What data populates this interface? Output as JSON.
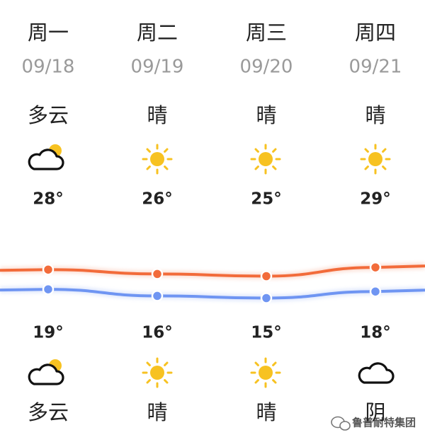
{
  "forecast": {
    "days": [
      {
        "weekday": "周一",
        "date": "09/18",
        "day_weather": "多云",
        "night_weather": "多云"
      },
      {
        "weekday": "周二",
        "date": "09/19",
        "day_weather": "晴",
        "night_weather": "晴"
      },
      {
        "weekday": "周三",
        "date": "09/20",
        "day_weather": "晴",
        "night_weather": "晴"
      },
      {
        "weekday": "周四",
        "date": "09/21",
        "day_weather": "晴",
        "night_weather": "阴"
      }
    ],
    "high": {
      "values": [
        28,
        26,
        25,
        29
      ],
      "value_labels": [
        "28°",
        "26°",
        "25°",
        "29°"
      ],
      "color": "#f26b3a"
    },
    "low": {
      "values": [
        19,
        16,
        15,
        18
      ],
      "value_labels": [
        "19°",
        "16°",
        "15°",
        "18°"
      ],
      "color": "#6f95f2"
    }
  },
  "watermark": "鲁普耐特集团"
}
